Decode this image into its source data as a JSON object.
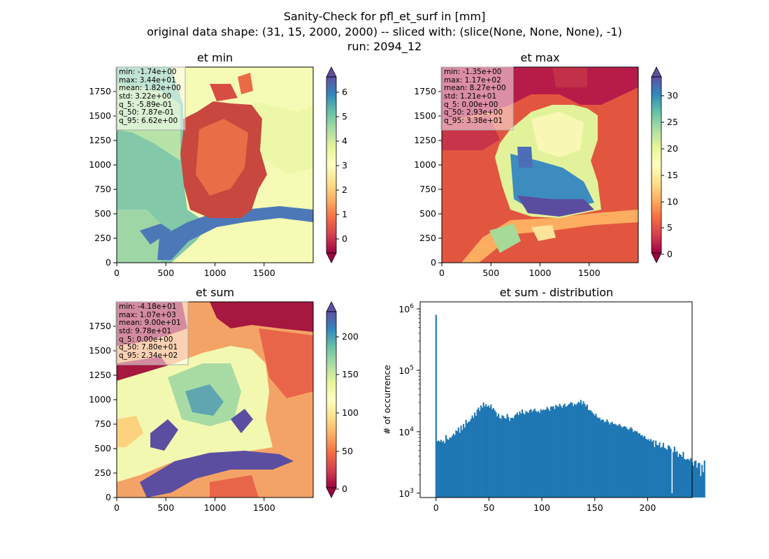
{
  "suptitle": {
    "line1": "Sanity-Check for pfl_et_surf in [mm]",
    "line2": "original data shape: (31, 15, 2000, 2000) -- sliced with: (slice(None, None, None), -1)",
    "line3": "run: 2094_12"
  },
  "chart_data": [
    {
      "type": "heatmap",
      "title": "et min",
      "colormap": "Spectral",
      "xlim": [
        0,
        2000
      ],
      "ylim": [
        0,
        2000
      ],
      "xticks": [
        "0",
        "500",
        "1000",
        "1500"
      ],
      "yticks": [
        "0",
        "250",
        "500",
        "750",
        "1000",
        "1250",
        "1500",
        "1750"
      ],
      "colorbar": {
        "range": [
          -0.8,
          6.8
        ],
        "ticks": [
          "0",
          "1",
          "2",
          "3",
          "4",
          "5",
          "6"
        ],
        "extend": "both"
      },
      "stats": [
        "min: -1.74e+00",
        "max: 3.44e+01",
        "mean: 1.82e+00",
        "std: 3.22e+00",
        "q_5: -5.89e-01",
        "q_50: 7.87e-01",
        "q_95: 6.62e+00"
      ]
    },
    {
      "type": "heatmap",
      "title": "et max",
      "colormap": "Spectral",
      "xlim": [
        0,
        2000
      ],
      "ylim": [
        0,
        2000
      ],
      "xticks": [
        "0",
        "500",
        "1000",
        "1500"
      ],
      "yticks": [
        "0",
        "250",
        "500",
        "750",
        "1000",
        "1250",
        "1500",
        "1750"
      ],
      "colorbar": {
        "range": [
          0,
          34
        ],
        "ticks": [
          "0",
          "5",
          "10",
          "15",
          "20",
          "25",
          "30"
        ],
        "extend": "both"
      },
      "stats": [
        "min: -1.35e+00",
        "max: 1.17e+02",
        "mean: 8.27e+00",
        "std: 1.21e+01",
        "q_5: 0.00e+00",
        "q_50: 2.93e+00",
        "q_95: 3.38e+01"
      ]
    },
    {
      "type": "heatmap",
      "title": "et sum",
      "colormap": "Spectral",
      "xlim": [
        0,
        2000
      ],
      "ylim": [
        0,
        2000
      ],
      "xticks": [
        "0",
        "500",
        "1000",
        "1500"
      ],
      "yticks": [
        "0",
        "250",
        "500",
        "750",
        "1000",
        "1250",
        "1500",
        "1750"
      ],
      "colorbar": {
        "range": [
          -8,
          236
        ],
        "ticks": [
          "0",
          "50",
          "100",
          "150",
          "200"
        ],
        "extend": "both"
      },
      "stats": [
        "min: -4.18e+01",
        "max: 1.07e+03",
        "mean: 9.00e+01",
        "std: 9.78e+01",
        "q_5: 0.00e+00",
        "q_50: 7.80e+01",
        "q_95: 2.34e+02"
      ]
    },
    {
      "type": "bar",
      "title": "et sum - distribution",
      "ylabel": "# of occurrence",
      "xlabel": "",
      "yscale": "log",
      "xlim": [
        -15,
        242
      ],
      "ylim": [
        850,
        1300000
      ],
      "xticks": [
        0,
        50,
        100,
        150,
        200
      ],
      "ytick_labels": [
        {
          "base": "10",
          "exp": "3"
        },
        {
          "base": "10",
          "exp": "4"
        },
        {
          "base": "10",
          "exp": "5"
        },
        {
          "base": "10",
          "exp": "6"
        }
      ],
      "color": "#1f77b4",
      "bin_start": -0.65,
      "bin_width": 1.18,
      "counts": [
        800000,
        7000,
        7200,
        6900,
        7400,
        6800,
        7100,
        6500,
        8800,
        7600,
        7400,
        8100,
        7900,
        8600,
        9300,
        8800,
        10500,
        10200,
        11700,
        9600,
        12600,
        10700,
        13400,
        11700,
        15600,
        13700,
        14500,
        14800,
        16200,
        18400,
        16900,
        20600,
        18200,
        22900,
        24800,
        21800,
        26800,
        24700,
        30000,
        25800,
        28100,
        25500,
        26800,
        24800,
        27800,
        23300,
        24200,
        22300,
        20800,
        17800,
        19600,
        16700,
        16300,
        18500,
        18000,
        16600,
        16300,
        19500,
        17400,
        15000,
        16800,
        17000,
        16500,
        18500,
        19200,
        20500,
        18700,
        21500,
        19800,
        23000,
        20000,
        19200,
        21700,
        21000,
        20300,
        22400,
        23300,
        21100,
        22500,
        23800,
        21700,
        20900,
        21800,
        20300,
        23300,
        22100,
        23000,
        22500,
        23100,
        25300,
        23600,
        21800,
        25800,
        25500,
        26100,
        23400,
        27400,
        26300,
        25500,
        28600,
        26400,
        24500,
        27200,
        28600,
        25500,
        26200,
        27700,
        28700,
        30400,
        29600,
        26100,
        28400,
        27200,
        28700,
        30600,
        29600,
        32900,
        28000,
        31400,
        28600,
        25900,
        27700,
        22600,
        22500,
        22100,
        20800,
        19700,
        18400,
        19700,
        17400,
        16600,
        16900,
        15300,
        15900,
        15600,
        14200,
        14800,
        15900,
        14400,
        13100,
        14000,
        14500,
        13300,
        13500,
        13100,
        12600,
        12800,
        13400,
        12500,
        11700,
        12100,
        12300,
        12000,
        11300,
        10700,
        11200,
        11900,
        11200,
        9900,
        10400,
        10200,
        10100,
        9300,
        9500,
        8700,
        8800,
        8200,
        8600,
        7700,
        7400,
        7600,
        7100,
        7600,
        6900,
        7300,
        5600,
        7200,
        6100,
        6000,
        6700,
        5500,
        5700,
        6600,
        5500,
        5300,
        5100,
        6000,
        5800,
        5300,
        1000,
        4700,
        5700,
        4700,
        4800,
        3900,
        4400,
        4200,
        3900,
        4700,
        3600,
        3500,
        3600,
        3600,
        3400,
        3700,
        3200,
        2800,
        3300,
        3400,
        2600,
        3100,
        3100,
        1900,
        2900,
        2200,
        3400
      ]
    }
  ]
}
